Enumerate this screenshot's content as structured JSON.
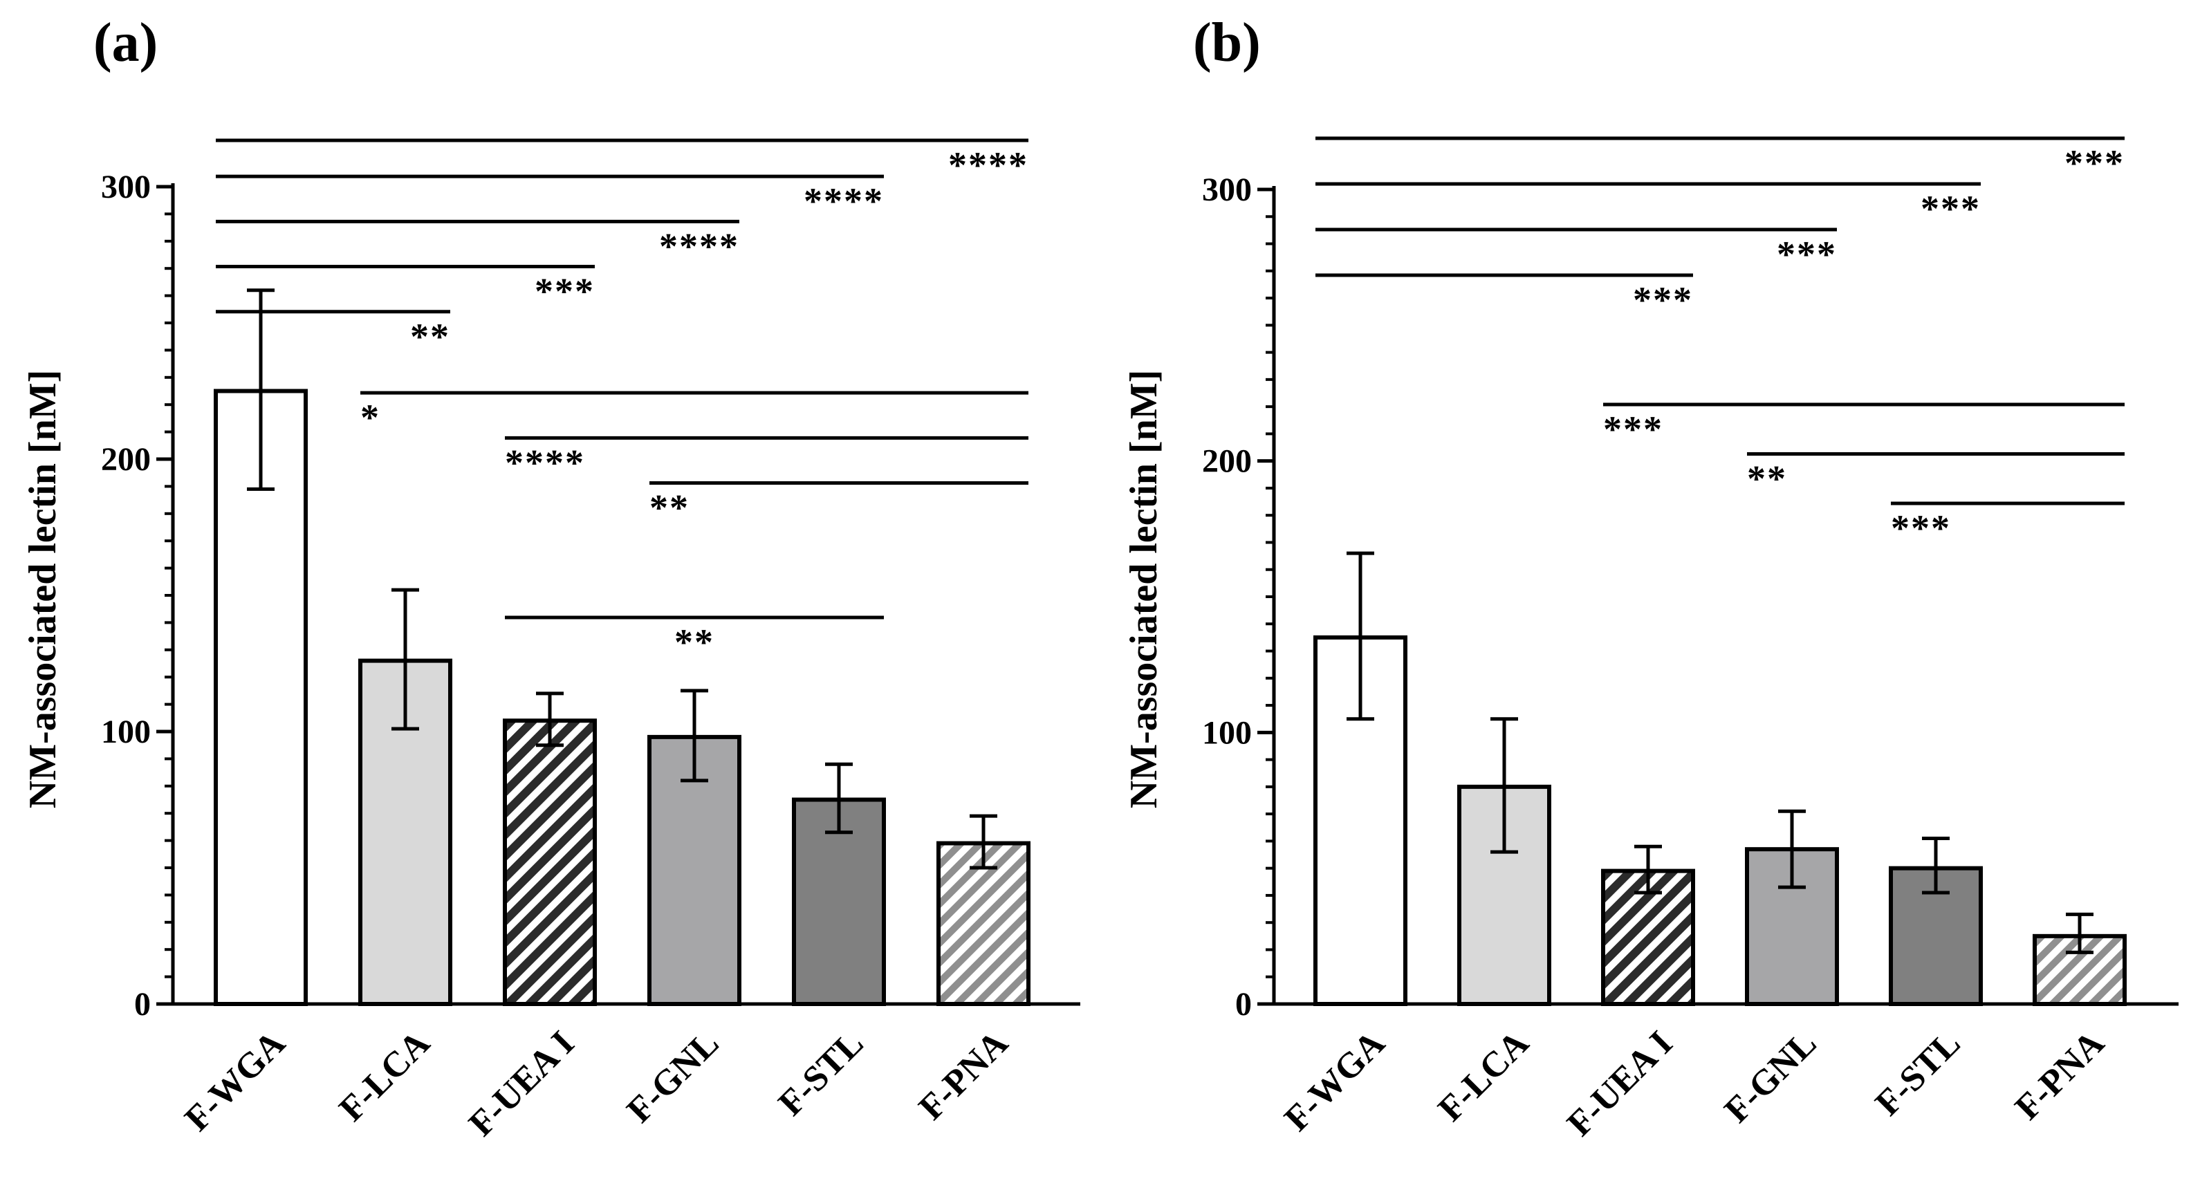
{
  "figure": {
    "description_note": "Two-panel bar chart with error bars and significance brackets"
  },
  "chart_data": [
    {
      "type": "bar",
      "panel": "(a)",
      "title": "",
      "xlabel": "",
      "ylabel": "NM-associated lectin [nM]",
      "ylim": [
        0,
        300
      ],
      "yticks": [
        0,
        100,
        200,
        300
      ],
      "categories": [
        "F-WGA",
        "F-LCA",
        "F-UEA I",
        "F-GNL",
        "F-STL",
        "F-PNA"
      ],
      "values": [
        225,
        126,
        104,
        98,
        75,
        59
      ],
      "errors": [
        [
          189,
          262
        ],
        [
          101,
          152
        ],
        [
          95,
          114
        ],
        [
          82,
          115
        ],
        [
          63,
          88
        ],
        [
          50,
          69
        ]
      ],
      "fills": [
        "#ffffff",
        "#d9d9d9",
        "hatch-dark",
        "#a6a6a8",
        "#808080",
        "hatch-light"
      ],
      "significance": [
        {
          "from": 0,
          "to": 5,
          "level": 100,
          "label": "****"
        },
        {
          "from": 0,
          "to": 4,
          "level": 92,
          "label": "****"
        },
        {
          "from": 0,
          "to": 3,
          "level": 82,
          "label": "****"
        },
        {
          "from": 0,
          "to": 2,
          "level": 72,
          "label": "***"
        },
        {
          "from": 0,
          "to": 1,
          "level": 62,
          "label": "**"
        },
        {
          "from": 1,
          "to": 5,
          "level": 44,
          "label": "*"
        },
        {
          "from": 2,
          "to": 5,
          "level": 34,
          "label": "****"
        },
        {
          "from": 3,
          "to": 5,
          "level": 24,
          "label": "**"
        },
        {
          "from": 2,
          "to": 4,
          "level": 0,
          "label": "**"
        }
      ]
    },
    {
      "type": "bar",
      "panel": "(b)",
      "title": "",
      "xlabel": "",
      "ylabel": "NM-associated lectin [nM]",
      "ylim": [
        0,
        300
      ],
      "yticks": [
        0,
        100,
        200,
        300
      ],
      "categories": [
        "F-WGA",
        "F-LCA",
        "F-UEA I",
        "F-GNL",
        "F-STL",
        "F-PNA"
      ],
      "values": [
        135,
        80,
        49,
        57,
        50,
        25
      ],
      "errors": [
        [
          105,
          166
        ],
        [
          56,
          105
        ],
        [
          41,
          58
        ],
        [
          43,
          71
        ],
        [
          41,
          61
        ],
        [
          19,
          33
        ]
      ],
      "fills": [
        "#ffffff",
        "#d9d9d9",
        "hatch-dark",
        "#a6a6a8",
        "#808080",
        "hatch-light"
      ],
      "significance": [
        {
          "from": 0,
          "to": 5,
          "level": 100,
          "label": "***"
        },
        {
          "from": 0,
          "to": 4,
          "level": 88,
          "label": "***"
        },
        {
          "from": 0,
          "to": 3,
          "level": 76,
          "label": "***"
        },
        {
          "from": 0,
          "to": 2,
          "level": 64,
          "label": "***"
        },
        {
          "from": 2,
          "to": 5,
          "level": 30,
          "label": "***"
        },
        {
          "from": 3,
          "to": 5,
          "level": 17,
          "label": "**"
        },
        {
          "from": 4,
          "to": 5,
          "level": 4,
          "label": "***"
        }
      ]
    }
  ]
}
